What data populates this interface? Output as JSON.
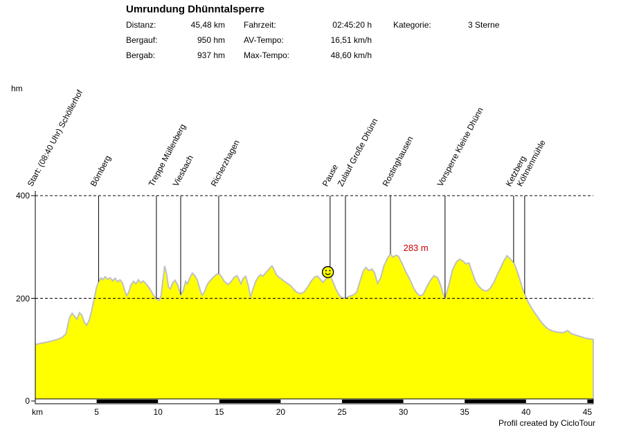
{
  "header": {
    "title": "Umrundung Dhünntalsperre",
    "stats": {
      "col1": [
        {
          "label": "Distanz:",
          "value": "45,48 km"
        },
        {
          "label": "Bergauf:",
          "value": "950 hm"
        },
        {
          "label": "Bergab:",
          "value": "937 hm"
        }
      ],
      "col2": [
        {
          "label": "Fahrzeit:",
          "value": "02:45:20 h"
        },
        {
          "label": "AV-Tempo:",
          "value": "16,51 km/h"
        },
        {
          "label": "Max-Tempo:",
          "value": "48,60 km/h"
        }
      ],
      "col3": [
        {
          "label": "Kategorie:",
          "value": "3 Sterne"
        }
      ]
    }
  },
  "footer": {
    "credit": "Profil created by CicloTour"
  },
  "chart_data": {
    "type": "area",
    "title": "Umrundung Dhünntalsperre",
    "xlabel": "km",
    "ylabel": "hm",
    "xlim": [
      0,
      45.48
    ],
    "ylim": [
      0,
      400
    ],
    "x_ticks": [
      5,
      10,
      15,
      20,
      25,
      30,
      35,
      40,
      45
    ],
    "y_ticks": [
      0,
      200,
      400
    ],
    "grid": "horizontal dashed lines at 200 and 400",
    "fill_color": "#FFFF00",
    "outline_color": "#C0C0C0",
    "axis_color": "#000000",
    "scale_bar": {
      "interval_km": 5,
      "colors": [
        "#FFFFFF",
        "#000000"
      ]
    },
    "annotation": {
      "text": "283 m",
      "color": "#CC0000",
      "km": 30.0,
      "m": 308
    },
    "smiley": {
      "km": 23.85,
      "m": 251
    },
    "markers": [
      {
        "km": 0.0,
        "label": "Start: (08:40 Uhr) Schöllerhof",
        "line_to_m": null
      },
      {
        "km": 5.16,
        "label": "Bömberg",
        "line_to_m": 232
      },
      {
        "km": 9.87,
        "label": "Treppe Müllenberg",
        "line_to_m": 199
      },
      {
        "km": 11.85,
        "label": "Viesbach",
        "line_to_m": 207
      },
      {
        "km": 14.95,
        "label": "Richerzhagen",
        "line_to_m": 248
      },
      {
        "km": 24.03,
        "label": "Pause",
        "line_to_m": 262
      },
      {
        "km": 25.28,
        "label": "Zulauf Große Dhünn",
        "line_to_m": 200
      },
      {
        "km": 28.95,
        "label": "Rostinghausen",
        "line_to_m": 287
      },
      {
        "km": 33.4,
        "label": "Vorsperre Kleine Dhünn",
        "line_to_m": 201
      },
      {
        "km": 38.99,
        "label": "Ketzberg",
        "line_to_m": 270
      },
      {
        "km": 39.89,
        "label": "Köhnenmühle",
        "line_to_m": 209
      }
    ],
    "profile": [
      [
        0,
        110
      ],
      [
        0.6,
        113
      ],
      [
        1.2,
        116
      ],
      [
        1.8,
        120
      ],
      [
        2.2,
        124
      ],
      [
        2.5,
        131
      ],
      [
        2.65,
        148
      ],
      [
        2.8,
        163
      ],
      [
        3.0,
        171
      ],
      [
        3.2,
        165
      ],
      [
        3.4,
        159
      ],
      [
        3.6,
        172
      ],
      [
        3.8,
        167
      ],
      [
        4.0,
        153
      ],
      [
        4.2,
        148
      ],
      [
        4.4,
        158
      ],
      [
        4.6,
        176
      ],
      [
        4.8,
        200
      ],
      [
        5.0,
        222
      ],
      [
        5.16,
        232
      ],
      [
        5.35,
        240
      ],
      [
        5.5,
        236
      ],
      [
        5.7,
        242
      ],
      [
        5.9,
        237
      ],
      [
        6.1,
        240
      ],
      [
        6.3,
        234
      ],
      [
        6.5,
        239
      ],
      [
        6.7,
        232
      ],
      [
        6.9,
        236
      ],
      [
        7.1,
        230
      ],
      [
        7.3,
        214
      ],
      [
        7.45,
        205
      ],
      [
        7.6,
        211
      ],
      [
        7.8,
        226
      ],
      [
        8.0,
        233
      ],
      [
        8.2,
        228
      ],
      [
        8.4,
        236
      ],
      [
        8.6,
        230
      ],
      [
        8.8,
        234
      ],
      [
        9.0,
        229
      ],
      [
        9.2,
        223
      ],
      [
        9.4,
        216
      ],
      [
        9.6,
        207
      ],
      [
        9.87,
        199
      ],
      [
        10.1,
        196
      ],
      [
        10.25,
        205
      ],
      [
        10.4,
        235
      ],
      [
        10.55,
        263
      ],
      [
        10.7,
        248
      ],
      [
        10.85,
        222
      ],
      [
        11.0,
        218
      ],
      [
        11.2,
        230
      ],
      [
        11.4,
        235
      ],
      [
        11.6,
        226
      ],
      [
        11.85,
        207
      ],
      [
        12.05,
        214
      ],
      [
        12.25,
        233
      ],
      [
        12.4,
        228
      ],
      [
        12.6,
        240
      ],
      [
        12.8,
        249
      ],
      [
        13.0,
        244
      ],
      [
        13.2,
        236
      ],
      [
        13.45,
        215
      ],
      [
        13.6,
        206
      ],
      [
        13.8,
        213
      ],
      [
        14.0,
        226
      ],
      [
        14.2,
        233
      ],
      [
        14.5,
        241
      ],
      [
        14.75,
        246
      ],
      [
        14.95,
        248
      ],
      [
        15.15,
        243
      ],
      [
        15.4,
        233
      ],
      [
        15.7,
        227
      ],
      [
        15.95,
        232
      ],
      [
        16.2,
        241
      ],
      [
        16.45,
        244
      ],
      [
        16.6,
        237
      ],
      [
        16.76,
        228
      ],
      [
        16.95,
        239
      ],
      [
        17.15,
        243
      ],
      [
        17.35,
        226
      ],
      [
        17.55,
        203
      ],
      [
        17.75,
        218
      ],
      [
        17.95,
        232
      ],
      [
        18.15,
        241
      ],
      [
        18.35,
        246
      ],
      [
        18.55,
        243
      ],
      [
        18.75,
        249
      ],
      [
        18.95,
        254
      ],
      [
        19.15,
        260
      ],
      [
        19.3,
        263
      ],
      [
        19.45,
        256
      ],
      [
        19.65,
        246
      ],
      [
        19.85,
        241
      ],
      [
        20.05,
        238
      ],
      [
        20.3,
        233
      ],
      [
        20.55,
        229
      ],
      [
        20.8,
        225
      ],
      [
        21.05,
        218
      ],
      [
        21.3,
        212
      ],
      [
        21.6,
        209
      ],
      [
        21.9,
        212
      ],
      [
        22.2,
        222
      ],
      [
        22.5,
        234
      ],
      [
        22.8,
        242
      ],
      [
        23.0,
        243
      ],
      [
        23.2,
        238
      ],
      [
        23.45,
        231
      ],
      [
        23.7,
        238
      ],
      [
        23.9,
        246
      ],
      [
        24.1,
        241
      ],
      [
        24.3,
        230
      ],
      [
        24.5,
        218
      ],
      [
        24.75,
        207
      ],
      [
        25.0,
        201
      ],
      [
        25.28,
        200
      ],
      [
        25.6,
        204
      ],
      [
        25.9,
        206
      ],
      [
        26.2,
        212
      ],
      [
        26.5,
        236
      ],
      [
        26.75,
        254
      ],
      [
        26.95,
        260
      ],
      [
        27.2,
        254
      ],
      [
        27.45,
        257
      ],
      [
        27.65,
        250
      ],
      [
        27.9,
        229
      ],
      [
        28.15,
        240
      ],
      [
        28.4,
        262
      ],
      [
        28.7,
        278
      ],
      [
        28.95,
        287
      ],
      [
        29.15,
        280
      ],
      [
        29.4,
        284
      ],
      [
        29.6,
        282
      ],
      [
        29.9,
        268
      ],
      [
        30.2,
        252
      ],
      [
        30.5,
        238
      ],
      [
        30.8,
        222
      ],
      [
        31.1,
        210
      ],
      [
        31.35,
        205
      ],
      [
        31.6,
        207
      ],
      [
        31.9,
        222
      ],
      [
        32.2,
        235
      ],
      [
        32.5,
        244
      ],
      [
        32.8,
        240
      ],
      [
        33.0,
        228
      ],
      [
        33.2,
        212
      ],
      [
        33.4,
        201
      ],
      [
        33.7,
        225
      ],
      [
        34.0,
        255
      ],
      [
        34.35,
        272
      ],
      [
        34.6,
        276
      ],
      [
        34.9,
        272
      ],
      [
        35.1,
        267
      ],
      [
        35.35,
        269
      ],
      [
        35.6,
        252
      ],
      [
        35.9,
        232
      ],
      [
        36.2,
        222
      ],
      [
        36.5,
        216
      ],
      [
        36.8,
        214
      ],
      [
        37.1,
        220
      ],
      [
        37.4,
        232
      ],
      [
        37.7,
        248
      ],
      [
        38.0,
        263
      ],
      [
        38.2,
        273
      ],
      [
        38.45,
        283
      ],
      [
        38.7,
        277
      ],
      [
        38.99,
        270
      ],
      [
        39.2,
        258
      ],
      [
        39.45,
        240
      ],
      [
        39.7,
        220
      ],
      [
        39.89,
        209
      ],
      [
        40.1,
        196
      ],
      [
        40.4,
        183
      ],
      [
        40.7,
        172
      ],
      [
        41.0,
        162
      ],
      [
        41.3,
        152
      ],
      [
        41.6,
        144
      ],
      [
        41.9,
        139
      ],
      [
        42.2,
        136
      ],
      [
        42.6,
        134
      ],
      [
        43.0,
        133
      ],
      [
        43.4,
        137
      ],
      [
        43.7,
        131
      ],
      [
        44.1,
        128
      ],
      [
        44.5,
        125
      ],
      [
        44.9,
        122
      ],
      [
        45.2,
        121
      ],
      [
        45.48,
        120
      ]
    ]
  }
}
